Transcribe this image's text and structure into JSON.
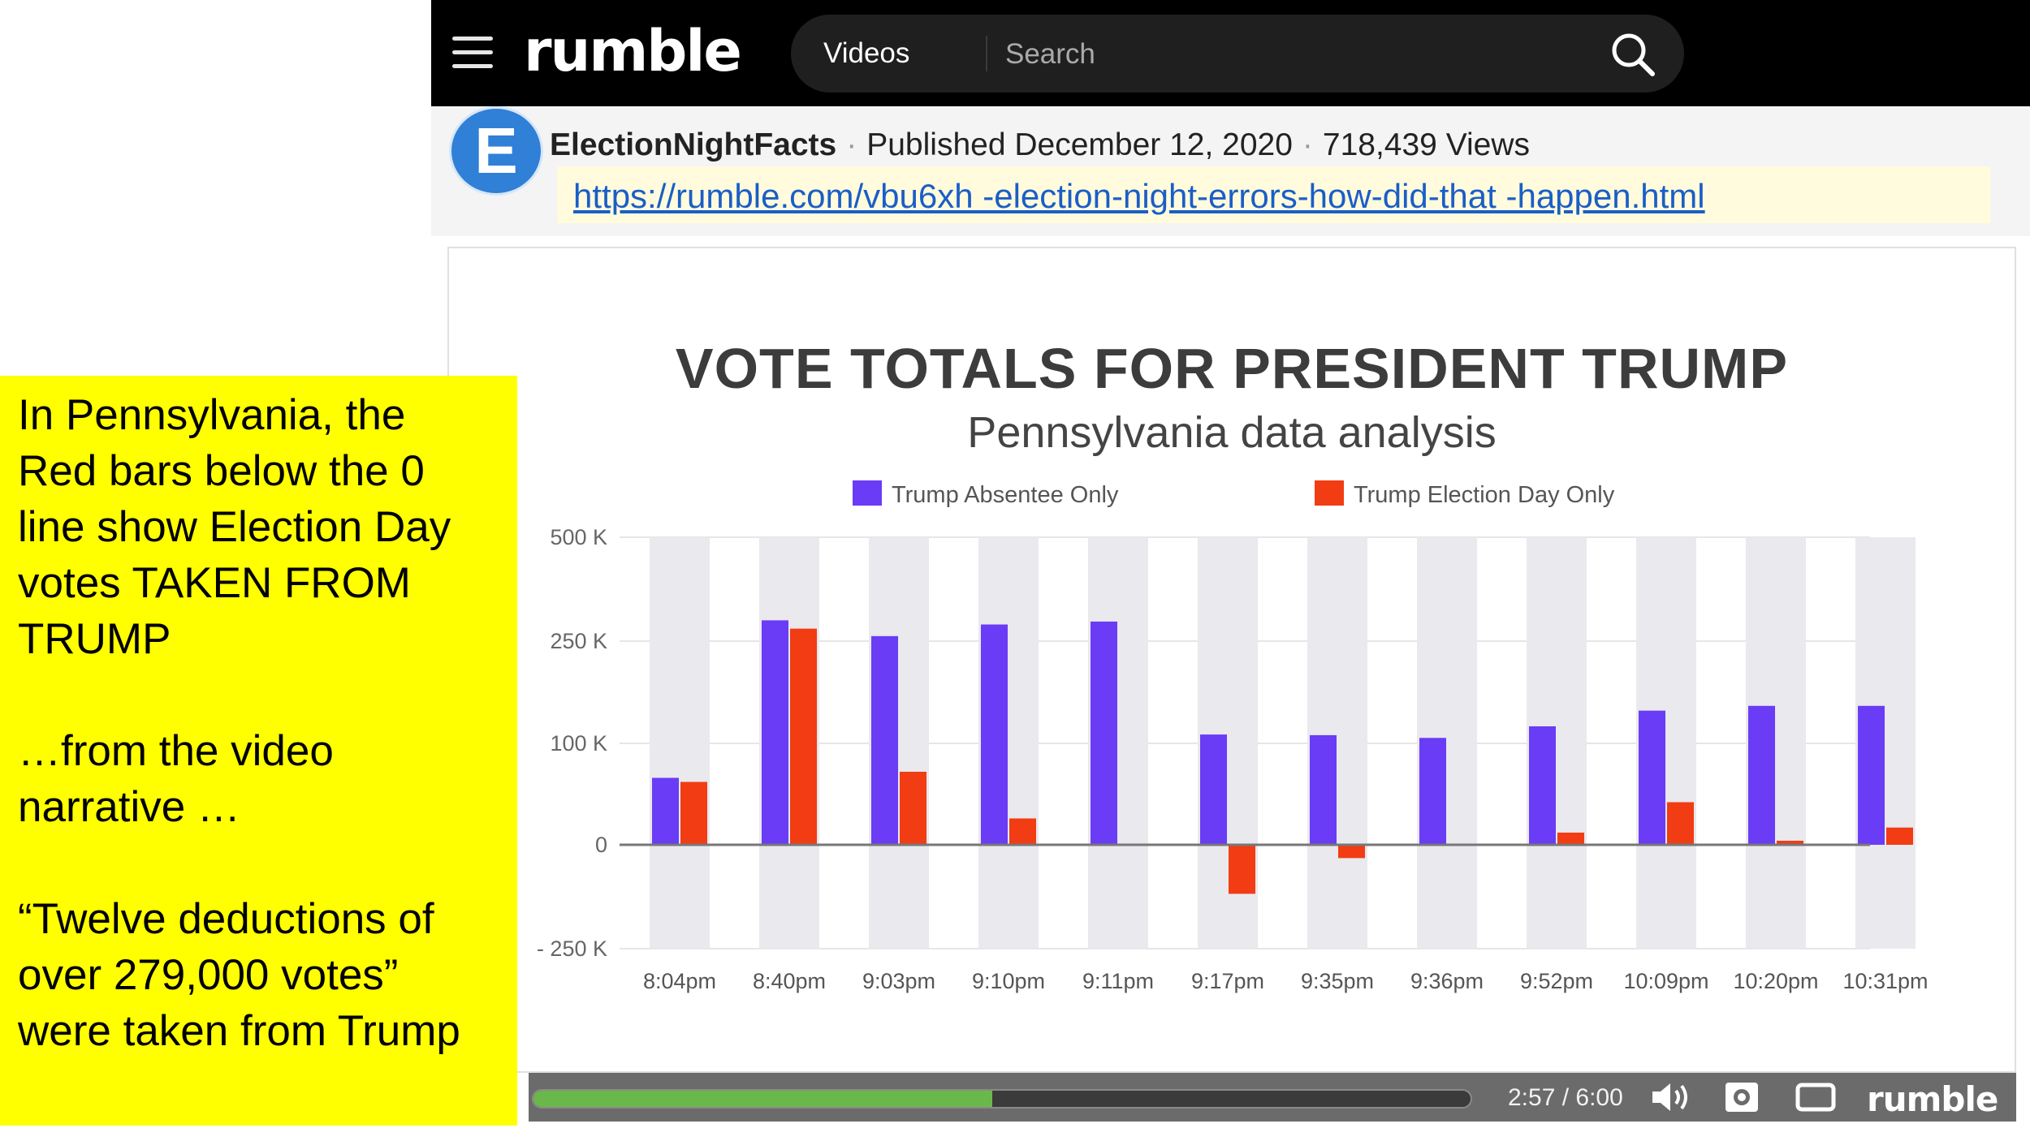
{
  "header": {
    "logo": "rumble",
    "search_scope": "Videos",
    "search_placeholder": "Search"
  },
  "video_meta": {
    "avatar_letter": "E",
    "channel": "ElectionNightFacts",
    "published": "Published December 12, 2020",
    "views": "718,439 Views",
    "url": "https://rumble.com/vbu6xh -election-night-errors-how-did-that -happen.html"
  },
  "chart_data": {
    "type": "bar",
    "title": "VOTE TOTALS FOR PRESIDENT TRUMP",
    "subtitle": "Pennsylvania data analysis",
    "categories": [
      "8:04pm",
      "8:40pm",
      "9:03pm",
      "9:10pm",
      "9:11pm",
      "9:17pm",
      "9:35pm",
      "9:36pm",
      "9:52pm",
      "10:09pm",
      "10:20pm",
      "10:31pm"
    ],
    "series": [
      {
        "name": "Trump Absentee Only",
        "color": "#6a3cf5",
        "values": [
          66000,
          300000,
          262000,
          290000,
          297000,
          113000,
          112000,
          108000,
          125000,
          148000,
          155000,
          155000
        ]
      },
      {
        "name": "Trump Election Day Only",
        "color": "#f23c14",
        "values": [
          62000,
          280000,
          72000,
          26000,
          0,
          -118000,
          -32000,
          0,
          12000,
          42000,
          4000,
          17000
        ]
      }
    ],
    "y_tick_labels": [
      "500 K",
      "250 K",
      "100 K",
      "0",
      "- 250 K"
    ],
    "legend_position": "top",
    "grid": true
  },
  "player": {
    "time": "2:57 / 6:00",
    "progress": 0.49,
    "logo": "rumble"
  },
  "annotation": {
    "paragraph_1": "In Pennsylvania, the\nRed bars below the 0\nline show Election Day\nvotes TAKEN FROM\nTRUMP",
    "paragraph_2": "…from the video\n narrative …",
    "paragraph_3": "“Twelve deductions of\nover 279,000 votes”\nwere taken from Trump"
  },
  "colors": {
    "header_bg": "#000000",
    "annotation_bg": "#ffff00",
    "url_color": "#1a5ec7",
    "progress_fill": "#6bb84a"
  }
}
